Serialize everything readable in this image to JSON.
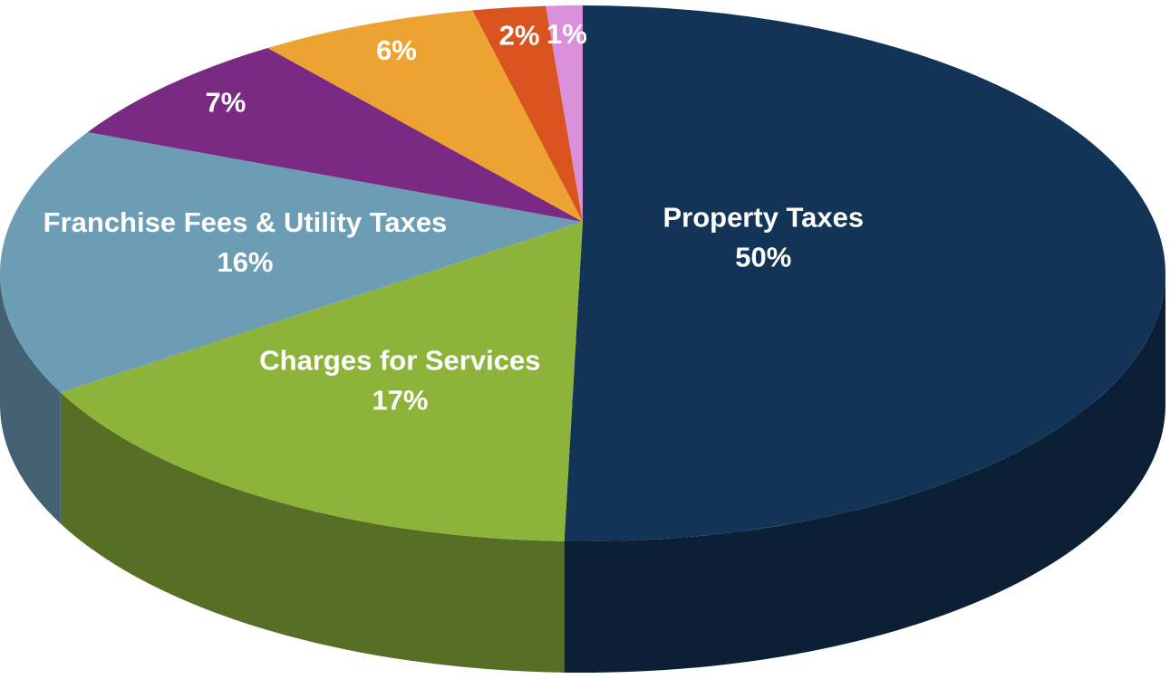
{
  "chart_data": {
    "type": "pie3d",
    "categories": [
      "Property Taxes",
      "Charges for Services",
      "Franchise Fees & Utility Taxes",
      null,
      null,
      null,
      null
    ],
    "values": [
      50,
      17,
      16,
      7,
      6,
      2,
      1
    ],
    "value_labels": [
      "50%",
      "17%",
      "16%",
      "7%",
      "6%",
      "2%",
      "1%"
    ],
    "colors": [
      "#123456",
      "#8db33a",
      "#6c9db5",
      "#7a2a82",
      "#eda332",
      "#d9531e",
      "#d98fd9"
    ]
  }
}
